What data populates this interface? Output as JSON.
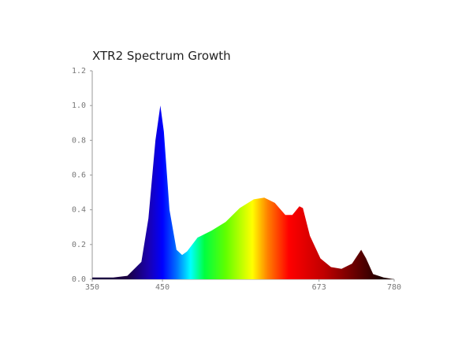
{
  "chart_data": {
    "type": "area",
    "title": "XTR2 Spectrum Growth",
    "x": [
      350,
      380,
      400,
      420,
      430,
      440,
      447,
      452,
      460,
      470,
      478,
      485,
      500,
      520,
      540,
      560,
      580,
      595,
      610,
      625,
      635,
      645,
      650,
      660,
      675,
      690,
      705,
      720,
      733,
      740,
      750,
      765,
      780
    ],
    "values": [
      0.01,
      0.01,
      0.02,
      0.1,
      0.35,
      0.8,
      1.0,
      0.85,
      0.4,
      0.17,
      0.14,
      0.16,
      0.24,
      0.28,
      0.33,
      0.41,
      0.46,
      0.47,
      0.44,
      0.37,
      0.37,
      0.42,
      0.41,
      0.25,
      0.12,
      0.07,
      0.06,
      0.09,
      0.17,
      0.12,
      0.03,
      0.01,
      0
    ],
    "color_stops": [
      {
        "x": 400,
        "color": "#1a0040"
      },
      {
        "x": 430,
        "color": "#1a00b0"
      },
      {
        "x": 450,
        "color": "#0000ff"
      },
      {
        "x": 470,
        "color": "#0070ff"
      },
      {
        "x": 490,
        "color": "#00ffff"
      },
      {
        "x": 510,
        "color": "#00ff40"
      },
      {
        "x": 540,
        "color": "#60ff00"
      },
      {
        "x": 578,
        "color": "#ffff00"
      },
      {
        "x": 600,
        "color": "#ff8000"
      },
      {
        "x": 630,
        "color": "#ff0000"
      },
      {
        "x": 680,
        "color": "#c00000"
      },
      {
        "x": 720,
        "color": "#700000"
      },
      {
        "x": 760,
        "color": "#200000"
      }
    ],
    "xlim": [
      350,
      780
    ],
    "xticks": [
      350,
      450,
      673,
      780
    ],
    "ylim": [
      0,
      1.2
    ],
    "yticks": [
      {
        "value": 0,
        "label": "0.0"
      },
      0.2,
      0.4,
      0.6,
      0.8,
      {
        "value": 1,
        "label": "1.0"
      },
      1.2
    ]
  }
}
